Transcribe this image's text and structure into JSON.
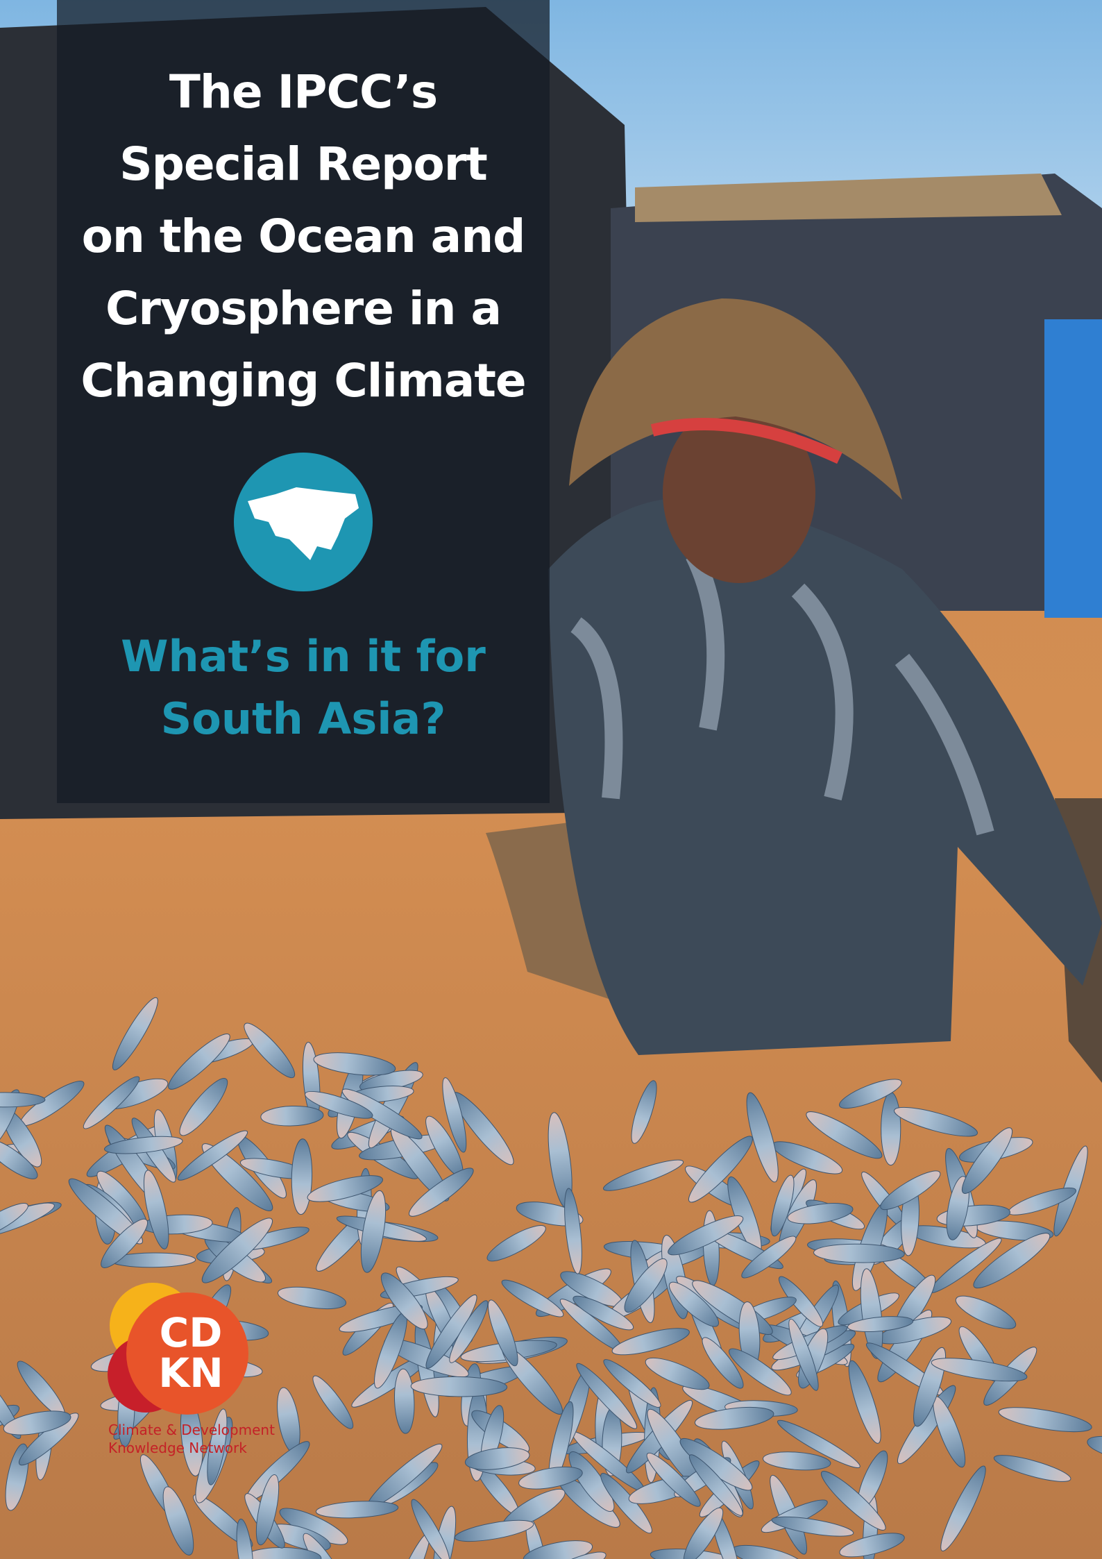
{
  "cover": {
    "title_lines": [
      "The IPCC’s",
      "Special Report",
      "on the Ocean and",
      "Cryosphere in a",
      "Changing Climate"
    ],
    "subtitle_lines": [
      "What’s in it for",
      "South Asia?"
    ],
    "logo": {
      "letters": [
        "CD",
        "KN"
      ],
      "org_lines": [
        "Climate & Development",
        "Knowledge Network"
      ]
    }
  }
}
